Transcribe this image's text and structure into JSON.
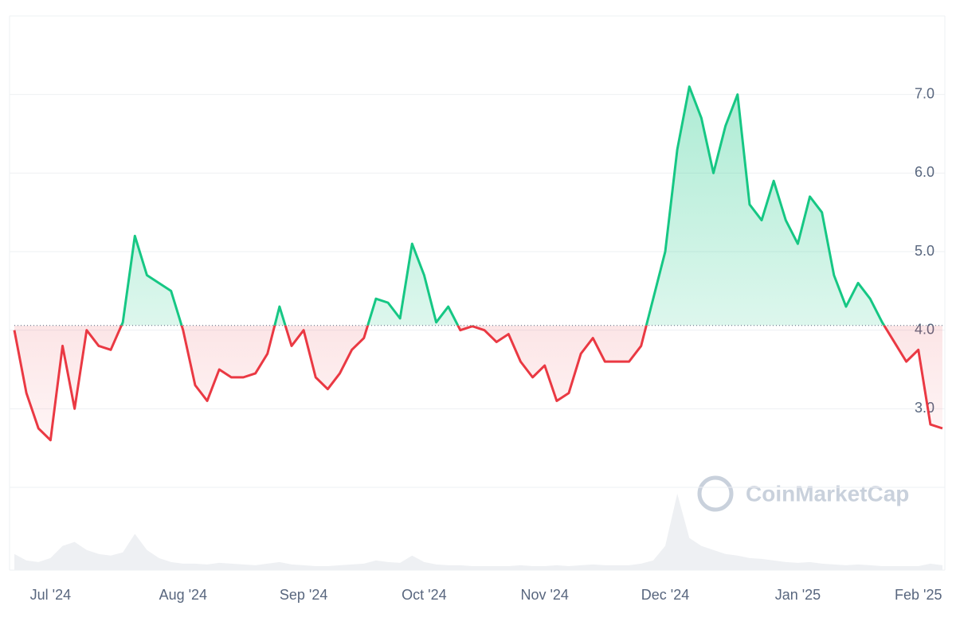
{
  "chart_data": {
    "type": "line",
    "watermark": "CoinMarketCap",
    "categories": [
      "",
      "",
      "",
      "Jul '24",
      "",
      "",
      "",
      "",
      "",
      "",
      "",
      "",
      "",
      "",
      "Aug '24",
      "",
      "",
      "",
      "",
      "",
      "",
      "",
      "",
      "",
      "Sep '24",
      "",
      "",
      "",
      "",
      "",
      "",
      "",
      "",
      "",
      "Oct '24",
      "",
      "",
      "",
      "",
      "",
      "",
      "",
      "",
      "",
      "Nov '24",
      "",
      "",
      "",
      "",
      "",
      "",
      "",
      "",
      "",
      "Dec '24",
      "",
      "",
      "",
      "",
      "",
      "",
      "",
      "",
      "",
      "",
      "Jan '25",
      "",
      "",
      "",
      "",
      "",
      "",
      "",
      "",
      "",
      "Feb '25",
      "",
      ""
    ],
    "series": [
      {
        "values": [
          4.0,
          3.2,
          2.75,
          2.6,
          3.8,
          3.0,
          4.0,
          3.8,
          3.75,
          4.1,
          5.2,
          4.7,
          4.6,
          4.5,
          4.0,
          3.3,
          3.1,
          3.5,
          3.4,
          3.4,
          3.45,
          3.7,
          4.3,
          3.8,
          4.0,
          3.4,
          3.25,
          3.45,
          3.75,
          3.9,
          4.4,
          4.35,
          4.15,
          5.1,
          4.7,
          4.1,
          4.3,
          4.0,
          4.05,
          4.0,
          3.85,
          3.95,
          3.6,
          3.4,
          3.55,
          3.1,
          3.2,
          3.7,
          3.9,
          3.6,
          3.6,
          3.6,
          3.8,
          4.4,
          5.0,
          6.3,
          7.1,
          6.7,
          6.0,
          6.6,
          7.0,
          5.6,
          5.4,
          5.9,
          5.4,
          5.1,
          5.7,
          5.5,
          4.7,
          4.3,
          4.6,
          4.4,
          4.1,
          3.85,
          3.6,
          3.75,
          2.8,
          2.75
        ]
      }
    ],
    "volume": [
      20,
      12,
      10,
      15,
      30,
      35,
      25,
      20,
      18,
      22,
      45,
      25,
      15,
      10,
      8,
      8,
      7,
      9,
      8,
      7,
      6,
      8,
      10,
      7,
      6,
      5,
      5,
      6,
      7,
      8,
      12,
      10,
      9,
      18,
      10,
      7,
      6,
      6,
      5,
      5,
      5,
      5,
      6,
      5,
      5,
      6,
      5,
      6,
      7,
      6,
      6,
      6,
      8,
      12,
      30,
      95,
      40,
      30,
      25,
      20,
      18,
      15,
      14,
      12,
      10,
      9,
      10,
      8,
      7,
      6,
      7,
      6,
      5,
      5,
      5,
      5,
      8,
      6
    ],
    "ylim": [
      2,
      8
    ],
    "yticks": [
      {
        "value": 3,
        "label": "3.0"
      },
      {
        "value": 4,
        "label": "4.0"
      },
      {
        "value": 5,
        "label": "5.0"
      },
      {
        "value": 6,
        "label": "6.0"
      },
      {
        "value": 7,
        "label": "7.0"
      }
    ],
    "baseline": 4.06,
    "up_color": "#16c784",
    "down_color": "#ea3943",
    "grid": true
  }
}
